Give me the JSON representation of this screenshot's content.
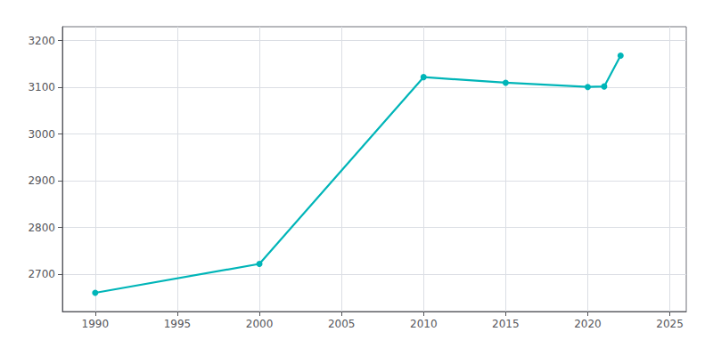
{
  "chart_data": {
    "type": "line",
    "x": [
      1990,
      2000,
      2010,
      2015,
      2020,
      2021,
      2022
    ],
    "values": [
      2660,
      2722,
      3122,
      3110,
      3101,
      3102,
      3168
    ],
    "color": "#00b5b8",
    "marker": "circle",
    "xlim": [
      1988,
      2026
    ],
    "xticks": [
      1990,
      1995,
      2000,
      2005,
      2010,
      2015,
      2020,
      2025
    ],
    "ylim": [
      2620,
      3230
    ],
    "yticks": [
      2700,
      2800,
      2900,
      3000,
      3100,
      3200
    ],
    "grid": true
  }
}
